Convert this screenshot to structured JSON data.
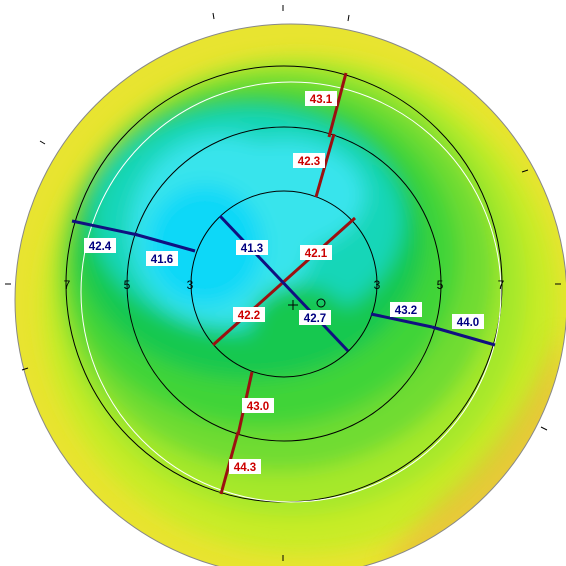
{
  "ring_labels": {
    "left": [
      "7",
      "5",
      "3"
    ],
    "right": [
      "3",
      "5",
      "7"
    ]
  },
  "meridians": {
    "steep": {
      "color": "#9b1010",
      "label_color": "#cc0000",
      "values": [
        "43.1",
        "42.3",
        "42.1",
        "42.2",
        "43.0",
        "44.3"
      ]
    },
    "flat": {
      "color": "#101080",
      "label_color": "#000080",
      "values": [
        "42.4",
        "41.6",
        "41.3",
        "42.7",
        "43.2",
        "44.0"
      ]
    }
  },
  "map_colors": {
    "deep_blue": "#10d8f8",
    "light_blue": "#38e8ee",
    "teal": "#18d6b8",
    "green_dark": "#18c850",
    "green": "#40d438",
    "yellow_green": "#a6e82a",
    "yellow": "#e8e830",
    "orange": "#e8a850"
  }
}
